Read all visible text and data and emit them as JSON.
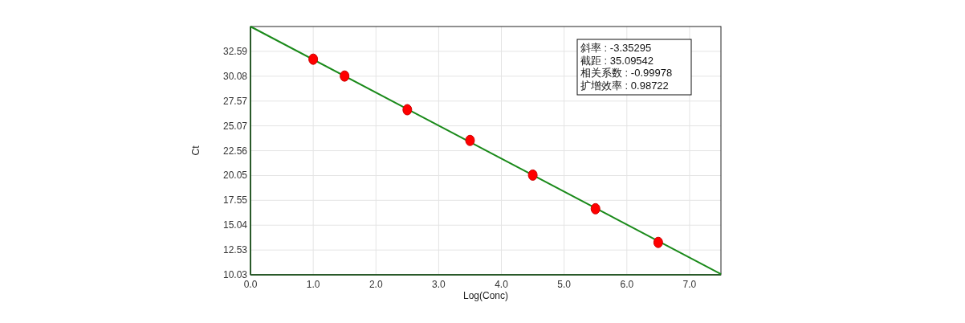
{
  "chart_data": {
    "type": "scatter",
    "xlabel": "Log(Conc)",
    "ylabel": "Ct",
    "xlim": [
      0,
      7.5
    ],
    "ylim": [
      10.03,
      35.1
    ],
    "xticks": [
      {
        "value": 0,
        "label": "0.0"
      },
      {
        "value": 1,
        "label": "1.0"
      },
      {
        "value": 2,
        "label": "2.0"
      },
      {
        "value": 3,
        "label": "3.0"
      },
      {
        "value": 4,
        "label": "4.0"
      },
      {
        "value": 5,
        "label": "5.0"
      },
      {
        "value": 6,
        "label": "6.0"
      },
      {
        "value": 7,
        "label": "7.0"
      }
    ],
    "yticks": [
      10.03,
      12.53,
      15.04,
      17.55,
      20.05,
      22.56,
      25.07,
      27.57,
      30.08,
      32.59
    ],
    "grid": true,
    "series": [
      {
        "type": "line",
        "color": "#1a8a1a",
        "x": [
          0,
          7.5
        ],
        "values": [
          35.1,
          10.1
        ]
      },
      {
        "marker": "circle",
        "color": "#ff0000",
        "x": [
          1,
          1.5,
          2.5,
          3.5,
          4.5,
          5.5,
          6.5
        ],
        "values": [
          31.8,
          30.1,
          26.7,
          23.6,
          20.1,
          16.7,
          13.3
        ]
      }
    ],
    "annotations": [
      "斜率 : -3.35295",
      "截距 : 35.09542",
      "相关系数 : -0.99978",
      "扩增效率 : 0.98722"
    ]
  }
}
